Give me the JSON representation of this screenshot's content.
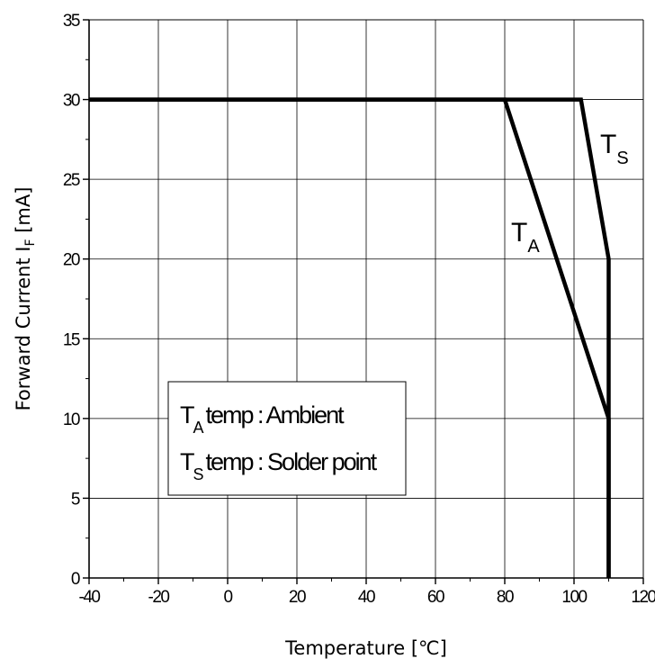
{
  "chart_data": {
    "type": "line",
    "xlabel": "Temperature [℃]",
    "ylabel_main": "Forward Current  I",
    "ylabel_sub": "F",
    "ylabel_unit": " [mA]",
    "xlim": [
      -40,
      120
    ],
    "ylim": [
      0,
      35
    ],
    "x_ticks": [
      -40,
      -20,
      0,
      20,
      40,
      60,
      80,
      100,
      120
    ],
    "y_ticks": [
      0,
      5,
      10,
      15,
      20,
      25,
      30,
      35
    ],
    "x_tick_labels": [
      "-40",
      "-20",
      "0",
      "20",
      "40",
      "60",
      "80",
      "100",
      "120"
    ],
    "y_tick_labels": [
      "0",
      "5",
      "10",
      "15",
      "20",
      "25",
      "30",
      "35"
    ],
    "grid": true,
    "series": [
      {
        "name": "T_S",
        "label_main": "T",
        "label_sub": "S",
        "points": [
          [
            -40,
            30
          ],
          [
            102,
            30
          ],
          [
            110,
            20
          ],
          [
            110,
            0
          ]
        ]
      },
      {
        "name": "T_A",
        "label_main": "T",
        "label_sub": "A",
        "points": [
          [
            -40,
            30
          ],
          [
            80,
            30
          ],
          [
            110,
            10
          ],
          [
            110,
            0
          ]
        ]
      }
    ],
    "legend": {
      "placement": "lower-left",
      "rows": [
        {
          "main": "T",
          "sub": "A",
          "text": "temp : Ambient"
        },
        {
          "main": "T",
          "sub": "S",
          "text": "temp : Solder point"
        }
      ]
    },
    "line_color": "#000000"
  }
}
